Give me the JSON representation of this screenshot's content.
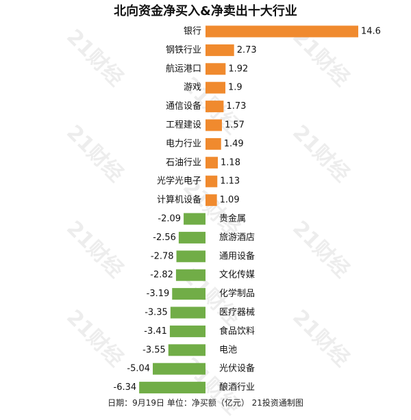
{
  "chart_data": {
    "type": "bar",
    "orientation": "horizontal",
    "title": "北向资金净买入&净卖出十大行业",
    "categories": [
      "银行",
      "钢铁行业",
      "航运港口",
      "游戏",
      "通信设备",
      "工程建设",
      "电力行业",
      "石油行业",
      "光学光电子",
      "计算机设备",
      "贵金属",
      "旅游酒店",
      "通用设备",
      "文化传媒",
      "化学制品",
      "医疗器械",
      "食品饮料",
      "电池",
      "光伏设备",
      "酿酒行业"
    ],
    "values": [
      14.6,
      2.73,
      1.92,
      1.9,
      1.73,
      1.57,
      1.49,
      1.18,
      1.13,
      1.09,
      -2.09,
      -2.56,
      -2.78,
      -2.82,
      -3.19,
      -3.35,
      -3.41,
      -3.55,
      -5.04,
      -6.34
    ],
    "value_labels": [
      "14.6",
      "2.73",
      "1.92",
      "1.9",
      "1.73",
      "1.57",
      "1.49",
      "1.18",
      "1.13",
      "1.09",
      "-2.09",
      "-2.56",
      "-2.78",
      "-2.82",
      "-3.19",
      "-3.35",
      "-3.41",
      "-3.55",
      "-5.04",
      "-6.34"
    ],
    "colors": {
      "positive": "#f08a2e",
      "negative": "#71ad47"
    },
    "grid": false,
    "legend": "none"
  },
  "footer": "日期：9月19日 单位：净买额（亿元） 21投资通制图",
  "watermark": "21财经"
}
